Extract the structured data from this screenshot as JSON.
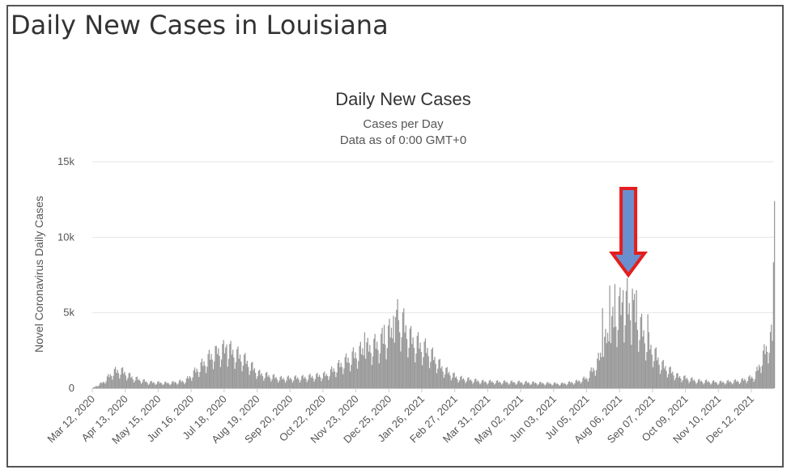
{
  "page": {
    "title": "Daily New Cases in Louisiana"
  },
  "colors": {
    "bars": "#999999",
    "grid": "#e6e6e6",
    "arrow_fill": "#6a8fcf",
    "arrow_stroke": "#e41e1e"
  },
  "chart_data": {
    "type": "bar",
    "title": "Daily New Cases",
    "subtitle": [
      "Cases per Day",
      "Data as of 0:00 GMT+0"
    ],
    "ylabel": "Novel Coronavirus Daily Cases",
    "xlabel": "",
    "ylim": [
      0,
      15000
    ],
    "yticks": [
      {
        "value": 0,
        "label": "0"
      },
      {
        "value": 5000,
        "label": "5k"
      },
      {
        "value": 10000,
        "label": "10k"
      },
      {
        "value": 15000,
        "label": "15k"
      }
    ],
    "x_start": "Mar 12, 2020",
    "x_end": "Jan 03, 2022",
    "xtick_labels": [
      "Mar 12, 2020",
      "Apr 13, 2020",
      "May 15, 2020",
      "Jun 16, 2020",
      "Jul 18, 2020",
      "Aug 19, 2020",
      "Sep 20, 2020",
      "Oct 22, 2020",
      "Nov 23, 2020",
      "Dec 25, 2020",
      "Jan 26, 2021",
      "Feb 27, 2021",
      "Mar 31, 2021",
      "May 02, 2021",
      "Jun 03, 2021",
      "Jul 05, 2021",
      "Aug 06, 2021",
      "Sep 07, 2021",
      "Oct 09, 2021",
      "Nov 10, 2021",
      "Dec 12, 2021"
    ],
    "grid": true,
    "legend": "none",
    "annotation": {
      "type": "arrow",
      "points_to": "Aug 2021 peak"
    },
    "series": [
      {
        "values": [
          {
            "date": "Mar 12, 2020",
            "value": 20
          },
          {
            "date": "Mar 22, 2020",
            "value": 400
          },
          {
            "date": "Apr 01, 2020",
            "value": 1100
          },
          {
            "date": "Apr 08, 2020",
            "value": 1200
          },
          {
            "date": "Apr 20, 2020",
            "value": 700
          },
          {
            "date": "May 05, 2020",
            "value": 400
          },
          {
            "date": "May 25, 2020",
            "value": 350
          },
          {
            "date": "Jun 10, 2020",
            "value": 500
          },
          {
            "date": "Jun 25, 2020",
            "value": 1500
          },
          {
            "date": "Jul 10, 2020",
            "value": 2500
          },
          {
            "date": "Jul 22, 2020",
            "value": 2600
          },
          {
            "date": "Aug 05, 2020",
            "value": 2000
          },
          {
            "date": "Aug 20, 2020",
            "value": 1000
          },
          {
            "date": "Sep 10, 2020",
            "value": 650
          },
          {
            "date": "Oct 01, 2020",
            "value": 700
          },
          {
            "date": "Oct 25, 2020",
            "value": 900
          },
          {
            "date": "Nov 10, 2020",
            "value": 1700
          },
          {
            "date": "Nov 25, 2020",
            "value": 2400
          },
          {
            "date": "Dec 15, 2020",
            "value": 3000
          },
          {
            "date": "Jan 06, 2021",
            "value": 4500
          },
          {
            "date": "Jan 15, 2021",
            "value": 3300
          },
          {
            "date": "Feb 01, 2021",
            "value": 2500
          },
          {
            "date": "Feb 15, 2021",
            "value": 1300
          },
          {
            "date": "Mar 01, 2021",
            "value": 700
          },
          {
            "date": "Mar 25, 2021",
            "value": 450
          },
          {
            "date": "May 01, 2021",
            "value": 400
          },
          {
            "date": "Jun 10, 2021",
            "value": 300
          },
          {
            "date": "Jun 25, 2021",
            "value": 450
          },
          {
            "date": "Jul 05, 2021",
            "value": 700
          },
          {
            "date": "Jul 15, 2021",
            "value": 1700
          },
          {
            "date": "Jul 25, 2021",
            "value": 3500
          },
          {
            "date": "Aug 05, 2021",
            "value": 5300
          },
          {
            "date": "Aug 12, 2021",
            "value": 5600
          },
          {
            "date": "Aug 20, 2021",
            "value": 5000
          },
          {
            "date": "Sep 01, 2021",
            "value": 3200
          },
          {
            "date": "Sep 15, 2021",
            "value": 1600
          },
          {
            "date": "Oct 01, 2021",
            "value": 800
          },
          {
            "date": "Oct 20, 2021",
            "value": 500
          },
          {
            "date": "Nov 10, 2021",
            "value": 400
          },
          {
            "date": "Dec 01, 2021",
            "value": 500
          },
          {
            "date": "Dec 15, 2021",
            "value": 800
          },
          {
            "date": "Dec 22, 2021",
            "value": 2000
          },
          {
            "date": "Dec 28, 2021",
            "value": 3000
          },
          {
            "date": "Jan 01, 2022",
            "value": 3500
          },
          {
            "date": "Jan 03, 2022",
            "value": 12400
          }
        ],
        "spikes": [
          {
            "date": "Jul 10, 2020",
            "value": 2800
          },
          {
            "date": "Jul 20, 2020",
            "value": 2900
          },
          {
            "date": "Dec 01, 2020",
            "value": 3700
          },
          {
            "date": "Dec 20, 2020",
            "value": 4200
          },
          {
            "date": "Dec 29, 2020",
            "value": 4800
          },
          {
            "date": "Jan 02, 2021",
            "value": 5900
          },
          {
            "date": "Jul 20, 2021",
            "value": 5300
          },
          {
            "date": "Jul 27, 2021",
            "value": 6800
          },
          {
            "date": "Aug 01, 2021",
            "value": 6900
          },
          {
            "date": "Aug 09, 2021",
            "value": 6500
          },
          {
            "date": "Aug 13, 2021",
            "value": 7300
          },
          {
            "date": "Aug 18, 2021",
            "value": 6600
          },
          {
            "date": "Aug 22, 2021",
            "value": 6500
          },
          {
            "date": "Sep 02, 2021",
            "value": 4900
          }
        ]
      }
    ]
  }
}
